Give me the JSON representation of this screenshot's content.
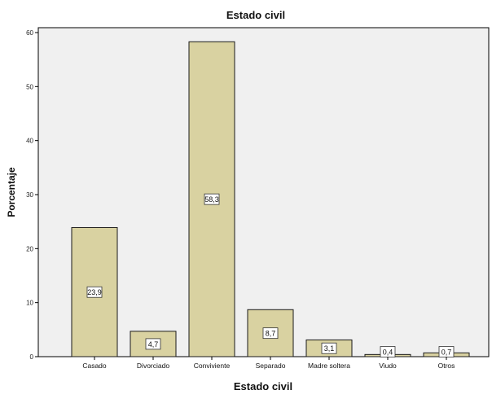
{
  "chart_data": {
    "type": "bar",
    "title": "Estado civil",
    "xlabel": "Estado civil",
    "ylabel": "Porcentaje",
    "categories": [
      "Casado",
      "Divorciado",
      "Conviviente",
      "Separado",
      "Madre soltera",
      "Viudo",
      "Otros"
    ],
    "values": [
      23.9,
      4.7,
      58.3,
      8.7,
      3.1,
      0.4,
      0.7
    ],
    "value_labels": [
      "23,9",
      "4,7",
      "58,3",
      "8,7",
      "3,1",
      "0,4",
      "0,7"
    ],
    "ylim": [
      0,
      60
    ],
    "yticks": [
      0,
      10,
      20,
      30,
      40,
      50,
      60
    ],
    "grid": false,
    "colors": {
      "bar_fill": "#d9d2a1",
      "bar_stroke": "#1a1a1a",
      "plot_bg": "#f0f0f0",
      "axis": "#000000"
    }
  }
}
